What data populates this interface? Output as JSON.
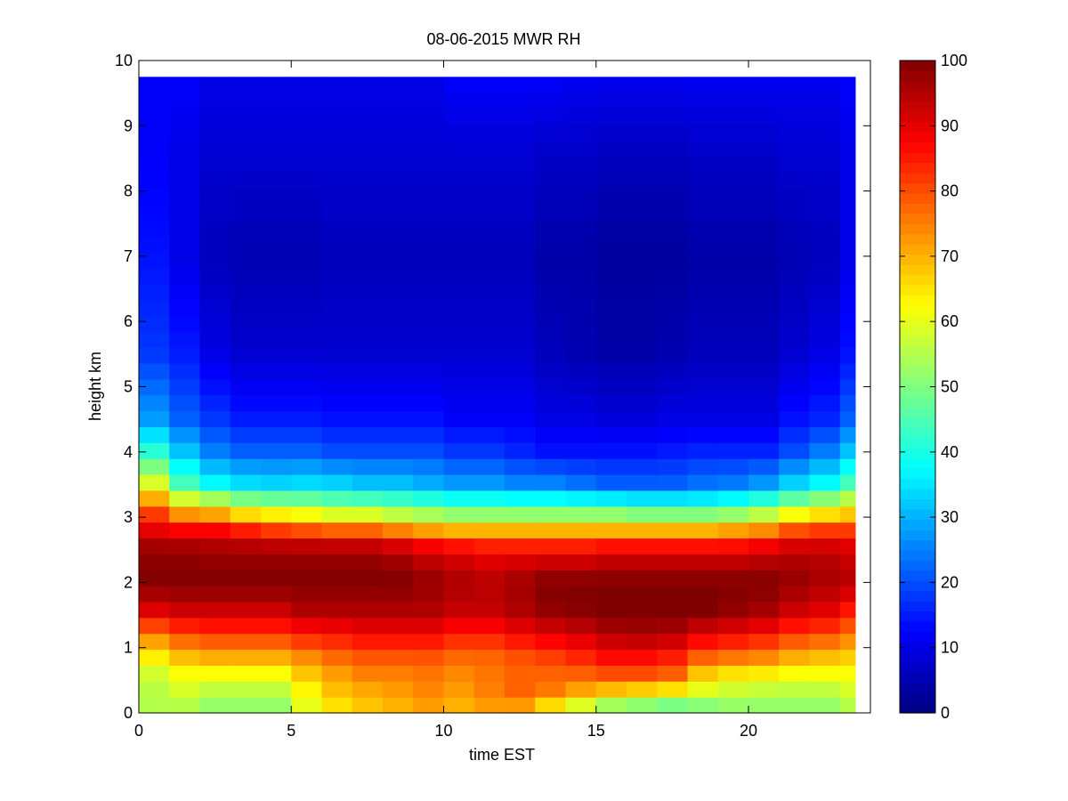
{
  "figure": {
    "title": "08-06-2015 MWR RH",
    "xlabel": "time EST",
    "ylabel": "height km"
  },
  "chart_data": {
    "type": "heatmap",
    "title": "08-06-2015 MWR RH",
    "xlabel": "time EST",
    "ylabel": "height km",
    "xlim": [
      0,
      24
    ],
    "ylim": [
      0,
      10
    ],
    "x_ticks": [
      0,
      5,
      10,
      15,
      20
    ],
    "y_ticks": [
      0,
      1,
      2,
      3,
      4,
      5,
      6,
      7,
      8,
      9,
      10
    ],
    "colorbar": {
      "range": [
        0,
        100
      ],
      "ticks": [
        0,
        10,
        20,
        30,
        40,
        50,
        60,
        70,
        80,
        90,
        100
      ],
      "colormap": "jet"
    },
    "data_extent": {
      "x": [
        0,
        23.5
      ],
      "y": [
        0,
        9.75
      ]
    },
    "grid": false,
    "x_columns": [
      0,
      1,
      2,
      3,
      4,
      5,
      6,
      7,
      8,
      9,
      10,
      11,
      12,
      13,
      14,
      15,
      16,
      17,
      18,
      19,
      20,
      21,
      22,
      23
    ],
    "profiles": {
      "heights_km": [
        0.0,
        0.1,
        0.3,
        0.6,
        0.9,
        1.2,
        1.55,
        2.0,
        2.5,
        2.8,
        3.1,
        3.5,
        4.0,
        4.5,
        5.5,
        7.0,
        8.5,
        9.75
      ],
      "rh_by_hour": [
        [
          55,
          55,
          55,
          58,
          65,
          75,
          90,
          100,
          98,
          90,
          80,
          60,
          42,
          28,
          18,
          14,
          12,
          12
        ],
        [
          52,
          55,
          58,
          62,
          70,
          80,
          92,
          100,
          98,
          88,
          70,
          45,
          32,
          22,
          15,
          10,
          10,
          12
        ],
        [
          48,
          52,
          55,
          62,
          72,
          82,
          92,
          100,
          97,
          88,
          68,
          38,
          25,
          18,
          10,
          6,
          8,
          10
        ],
        [
          48,
          52,
          55,
          62,
          72,
          82,
          92,
          100,
          97,
          85,
          62,
          35,
          22,
          15,
          8,
          5,
          8,
          10
        ],
        [
          48,
          52,
          55,
          62,
          72,
          82,
          92,
          100,
          97,
          82,
          60,
          34,
          22,
          15,
          8,
          5,
          8,
          10
        ],
        [
          50,
          60,
          62,
          68,
          75,
          85,
          95,
          100,
          97,
          80,
          58,
          35,
          22,
          15,
          8,
          5,
          8,
          10
        ],
        [
          58,
          65,
          68,
          72,
          78,
          86,
          95,
          100,
          97,
          78,
          55,
          34,
          20,
          14,
          8,
          6,
          8,
          10
        ],
        [
          60,
          68,
          70,
          75,
          80,
          88,
          95,
          100,
          97,
          78,
          55,
          32,
          20,
          14,
          8,
          6,
          8,
          10
        ],
        [
          62,
          70,
          72,
          75,
          80,
          88,
          95,
          100,
          95,
          75,
          52,
          32,
          20,
          14,
          8,
          6,
          8,
          10
        ],
        [
          64,
          72,
          74,
          76,
          80,
          88,
          95,
          98,
          92,
          72,
          50,
          30,
          20,
          14,
          8,
          6,
          8,
          10
        ],
        [
          60,
          70,
          72,
          74,
          78,
          85,
          93,
          96,
          90,
          70,
          48,
          28,
          18,
          12,
          8,
          6,
          8,
          12
        ],
        [
          58,
          72,
          75,
          76,
          78,
          85,
          93,
          95,
          88,
          70,
          48,
          28,
          18,
          12,
          8,
          6,
          8,
          12
        ],
        [
          56,
          72,
          78,
          78,
          80,
          88,
          95,
          97,
          88,
          70,
          48,
          26,
          16,
          12,
          8,
          6,
          8,
          12
        ],
        [
          50,
          65,
          75,
          78,
          82,
          90,
          98,
          100,
          88,
          70,
          48,
          26,
          14,
          10,
          6,
          4,
          7,
          12
        ],
        [
          45,
          58,
          70,
          78,
          85,
          92,
          99,
          100,
          88,
          70,
          48,
          24,
          14,
          10,
          5,
          4,
          7,
          11
        ],
        [
          40,
          52,
          66,
          80,
          88,
          95,
          100,
          100,
          90,
          70,
          48,
          22,
          14,
          9,
          4,
          3,
          6,
          11
        ],
        [
          38,
          50,
          64,
          80,
          88,
          96,
          100,
          100,
          90,
          70,
          46,
          22,
          14,
          9,
          4,
          3,
          6,
          11
        ],
        [
          36,
          48,
          62,
          78,
          86,
          95,
          100,
          100,
          90,
          70,
          46,
          22,
          15,
          10,
          5,
          3,
          6,
          11
        ],
        [
          38,
          50,
          58,
          68,
          80,
          90,
          100,
          100,
          90,
          70,
          46,
          24,
          16,
          10,
          6,
          4,
          7,
          11
        ],
        [
          40,
          52,
          56,
          65,
          78,
          88,
          98,
          100,
          90,
          72,
          48,
          25,
          16,
          10,
          6,
          4,
          7,
          11
        ],
        [
          45,
          52,
          55,
          64,
          76,
          86,
          96,
          100,
          92,
          74,
          52,
          28,
          16,
          10,
          6,
          4,
          7,
          11
        ],
        [
          48,
          52,
          55,
          62,
          72,
          82,
          92,
          98,
          94,
          80,
          58,
          34,
          20,
          14,
          8,
          5,
          8,
          11
        ],
        [
          48,
          52,
          55,
          62,
          70,
          80,
          90,
          96,
          94,
          82,
          62,
          38,
          25,
          16,
          10,
          6,
          8,
          11
        ],
        [
          50,
          55,
          58,
          62,
          68,
          76,
          85,
          95,
          92,
          82,
          65,
          45,
          32,
          22,
          14,
          10,
          10,
          12
        ]
      ]
    }
  }
}
